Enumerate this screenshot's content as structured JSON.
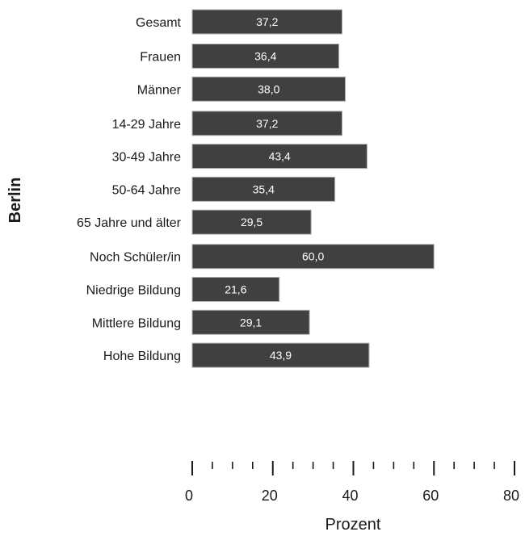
{
  "chart_data": {
    "type": "bar",
    "orientation": "horizontal",
    "categories": [
      "Gesamt",
      "Frauen",
      "Männer",
      "14-29 Jahre",
      "30-49 Jahre",
      "50-64 Jahre",
      "65 Jahre und älter",
      "Noch Schüler/in",
      "Niedrige Bildung",
      "Mittlere Bildung",
      "Hohe Bildung"
    ],
    "values": [
      37.2,
      36.4,
      38.0,
      37.2,
      43.4,
      35.4,
      29.5,
      60.0,
      21.6,
      29.1,
      43.9
    ],
    "value_labels": [
      "37,2",
      "36,4",
      "38,0",
      "37,2",
      "43,4",
      "35,4",
      "29,5",
      "60,0",
      "21,6",
      "29,1",
      "43,9"
    ],
    "groups": [
      [
        0
      ],
      [
        1,
        2
      ],
      [
        3,
        4,
        5,
        6
      ],
      [
        7,
        8,
        9,
        10
      ]
    ],
    "xlim": [
      0,
      80
    ],
    "xticks": [
      "0",
      "20",
      "40",
      "60",
      "80"
    ],
    "xlabel": "Prozent",
    "ylabel": "Berlin",
    "colors": {
      "bar": "#404040",
      "bar_text": "#ffffff"
    }
  }
}
